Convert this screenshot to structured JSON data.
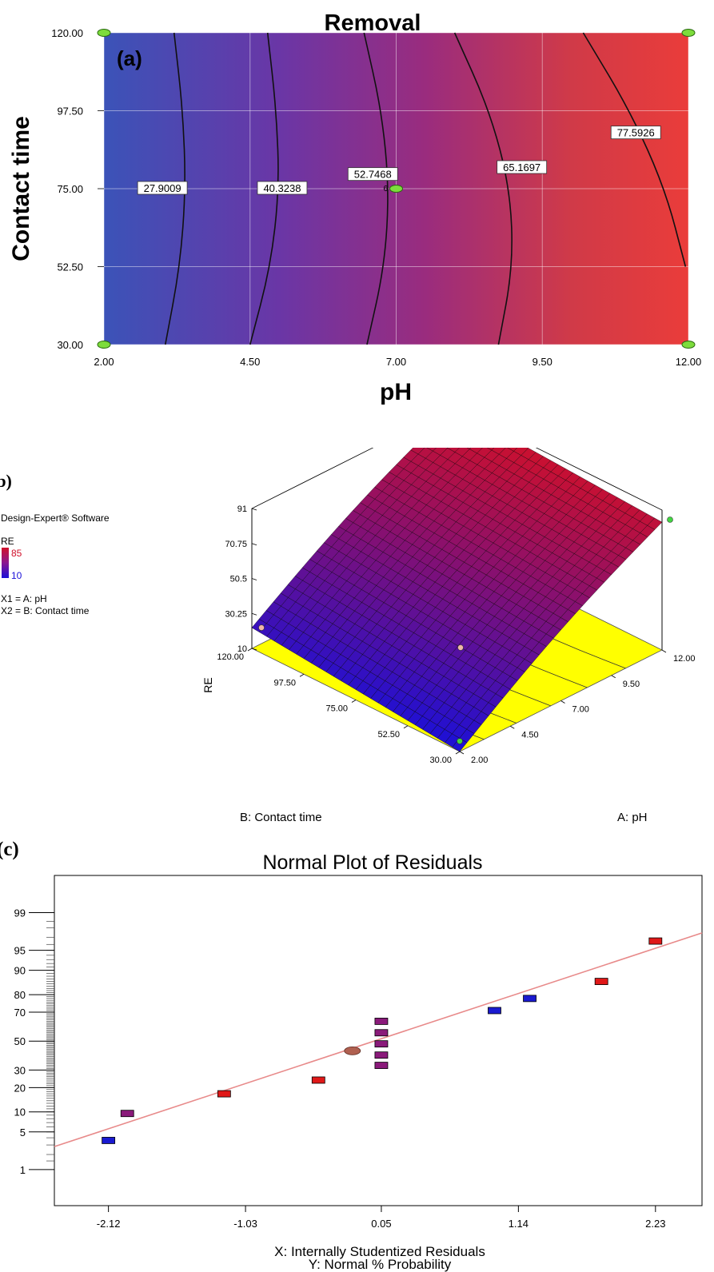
{
  "chart_data": [
    {
      "type": "contour",
      "panel_label": "(a)",
      "title": "Removal",
      "xlabel": "pH",
      "ylabel": "Contact time",
      "xlim": [
        2,
        12
      ],
      "ylim": [
        30,
        120
      ],
      "xticks": [
        "2.00",
        "4.50",
        "7.00",
        "9.50",
        "12.00"
      ],
      "yticks": [
        "30.00",
        "52.50",
        "75.00",
        "97.50",
        "120.00"
      ],
      "grid": true,
      "colors": {
        "low": "#3b4fb8",
        "mid": "#8a2c86",
        "high": "#e83a3a"
      },
      "contours": [
        {
          "label": "27.9009",
          "points": [
            [
              3.05,
              30
            ],
            [
              3.3,
              52.5
            ],
            [
              3.4,
              75
            ],
            [
              3.35,
              97.5
            ],
            [
              3.2,
              120
            ]
          ],
          "label_at": [
            3.0,
            75
          ]
        },
        {
          "label": "40.3238",
          "points": [
            [
              4.5,
              30
            ],
            [
              4.85,
              52.5
            ],
            [
              5.0,
              75
            ],
            [
              4.95,
              97.5
            ],
            [
              4.8,
              120
            ]
          ],
          "label_at": [
            5.05,
            75
          ]
        },
        {
          "label": "52.7468",
          "points": [
            [
              6.5,
              30
            ],
            [
              6.8,
              52.5
            ],
            [
              6.88,
              75
            ],
            [
              6.75,
              97.5
            ],
            [
              6.45,
              120
            ]
          ],
          "label_at": [
            6.6,
            79
          ]
        },
        {
          "label": "65.1697",
          "points": [
            [
              8.75,
              30
            ],
            [
              9.0,
              52.5
            ],
            [
              8.95,
              75
            ],
            [
              8.6,
              97.5
            ],
            [
              8.0,
              120
            ]
          ],
          "label_at": [
            9.15,
            81
          ]
        },
        {
          "label": "77.5926",
          "points": [
            [
              11.95,
              52.5
            ],
            [
              11.6,
              75
            ],
            [
              11.0,
              97.5
            ],
            [
              10.2,
              120
            ]
          ],
          "label_at": [
            11.1,
            91
          ]
        }
      ],
      "design_points": [
        [
          2,
          30
        ],
        [
          2,
          120
        ],
        [
          12,
          30
        ],
        [
          12,
          120
        ],
        [
          7,
          75
        ]
      ],
      "center_marker": "6"
    },
    {
      "type": "surface3d",
      "panel_label": "(b)",
      "software": "Design-Expert® Software",
      "legend": {
        "title": "RE",
        "high": "85",
        "low": "10"
      },
      "factors": [
        "X1 = A: pH",
        "X2 = B: Contact time"
      ],
      "zlabel": "RE",
      "zticks": [
        "10",
        "30.25",
        "50.5",
        "70.75",
        "91"
      ],
      "xlabel": "A: pH",
      "xticks": [
        "2.00",
        "4.50",
        "7.00",
        "9.50",
        "12.00"
      ],
      "ylabel": "B: Contact time",
      "yticks": [
        "30.00",
        "52.50",
        "75.00",
        "97.50",
        "120.00"
      ],
      "zlim": [
        10,
        91
      ],
      "surface_corners": {
        "pH2_time120": 22,
        "pH2_time30": 10,
        "pH12_time30": 84,
        "pH12_time120": 91
      },
      "colors": {
        "low": "#1b10d8",
        "high": "#d0102a",
        "floor": "#ffff00"
      }
    },
    {
      "type": "scatter",
      "panel_label": "(c)",
      "title": "Normal Plot of Residuals",
      "xlabel": "X: Internally Studentized Residuals",
      "ylabel": "Y: Normal % Probability",
      "xticks": [
        "-2.12",
        "-1.03",
        "0.05",
        "1.14",
        "2.23"
      ],
      "yticks": [
        "1",
        "5",
        "10",
        "20",
        "30",
        "50",
        "70",
        "80",
        "90",
        "95",
        "99"
      ],
      "xlim": [
        -2.55,
        2.6
      ],
      "points": [
        {
          "x": -2.12,
          "y": 3.6,
          "color": "#1a1ad0"
        },
        {
          "x": -1.97,
          "y": 9.5,
          "color": "#8a1a7a"
        },
        {
          "x": -1.2,
          "y": 17,
          "color": "#e01818"
        },
        {
          "x": -0.45,
          "y": 24,
          "color": "#e01818"
        },
        {
          "x": 0.05,
          "y": 33,
          "color": "#8a1a7a"
        },
        {
          "x": 0.05,
          "y": 40,
          "color": "#8a1a7a"
        },
        {
          "x": 0.05,
          "y": 48,
          "color": "#8a1a7a"
        },
        {
          "x": 0.05,
          "y": 56,
          "color": "#8a1a7a"
        },
        {
          "x": 0.05,
          "y": 64,
          "color": "#8a1a7a"
        },
        {
          "x": 0.95,
          "y": 71,
          "color": "#1a1ad0"
        },
        {
          "x": 1.23,
          "y": 78,
          "color": "#1a1ad0"
        },
        {
          "x": 1.8,
          "y": 86,
          "color": "#e01818"
        },
        {
          "x": 2.23,
          "y": 96.5,
          "color": "#e01818"
        }
      ],
      "center_point": {
        "x": -0.18,
        "y": 43
      },
      "fit_line": [
        [
          -2.55,
          2.8
        ],
        [
          2.6,
          97.5
        ]
      ],
      "line_color": "#e88a8a"
    }
  ]
}
